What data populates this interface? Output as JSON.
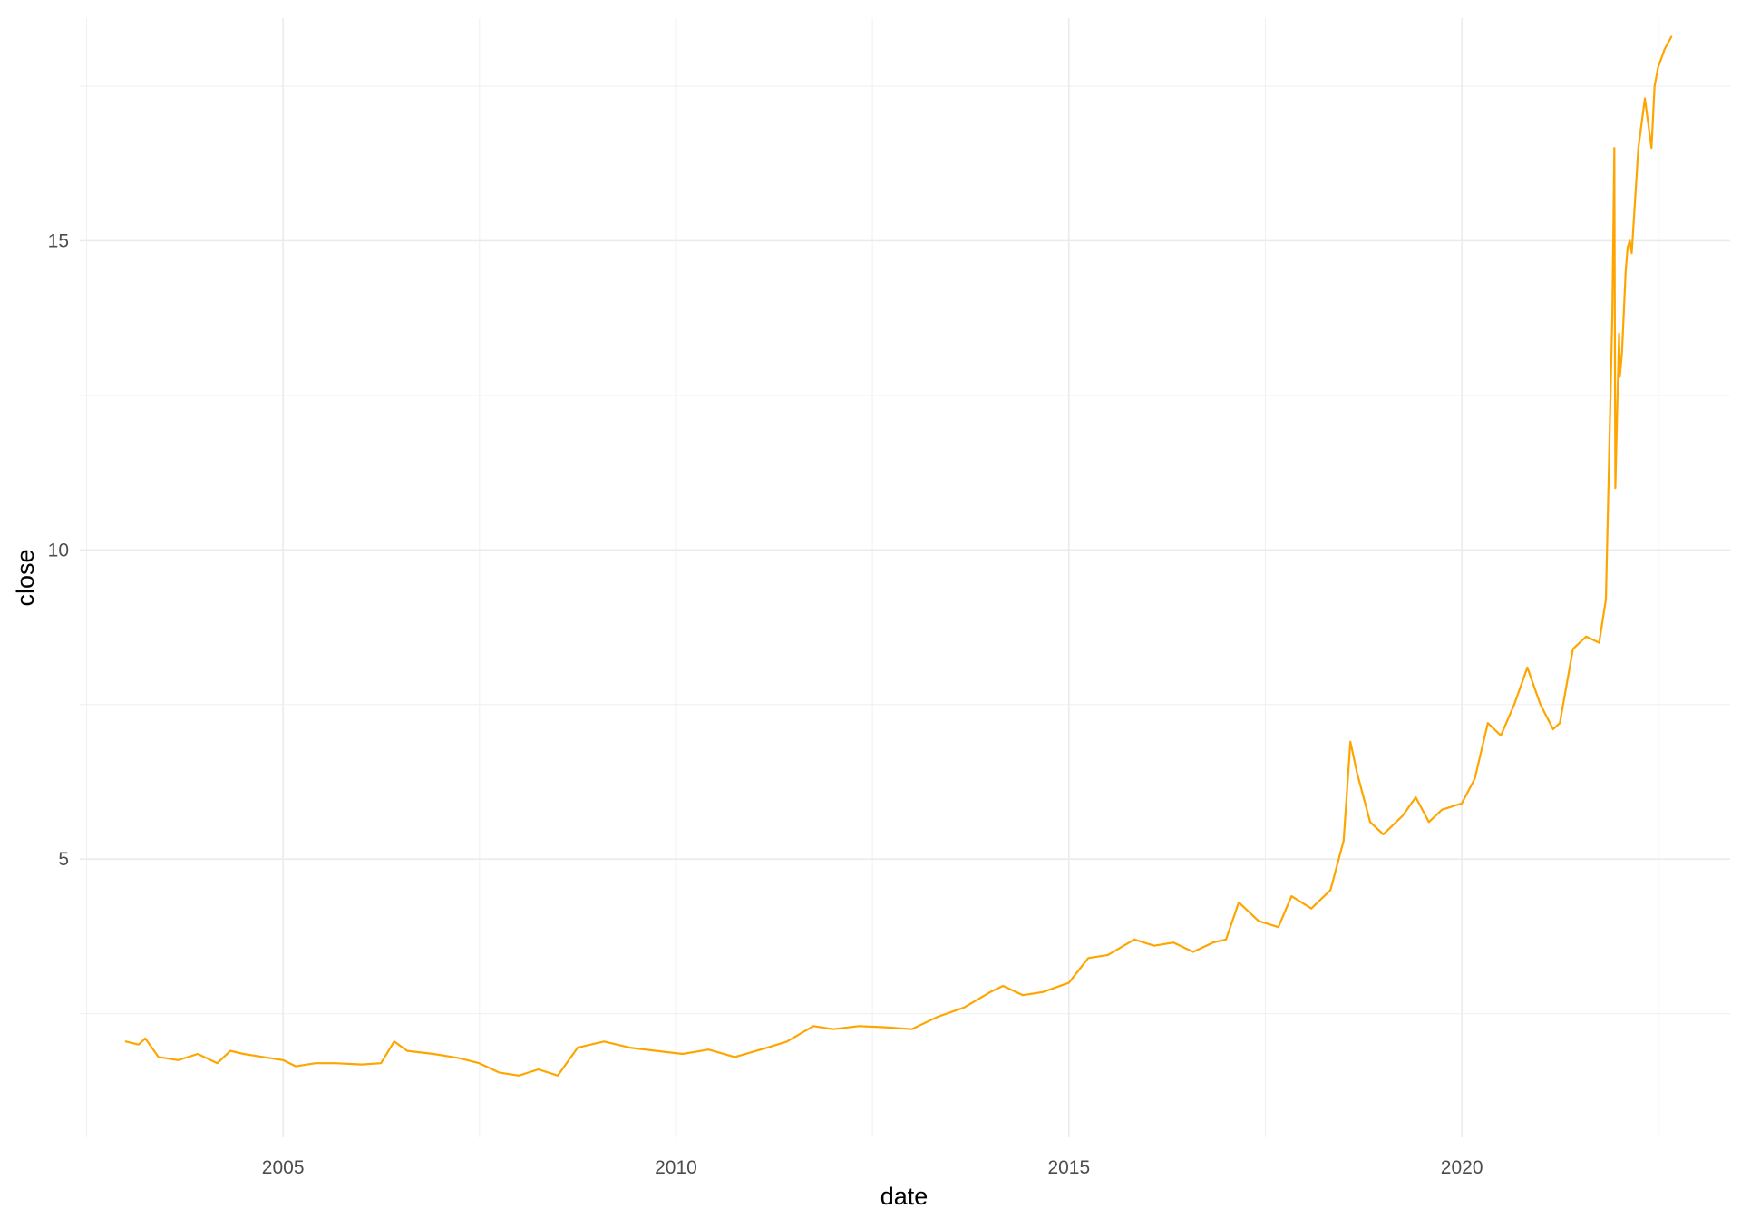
{
  "chart_data": {
    "type": "line",
    "title": "",
    "xlabel": "date",
    "ylabel": "close",
    "x_ticks": [
      "2005",
      "2010",
      "2015",
      "2020"
    ],
    "y_ticks": [
      "5",
      "10",
      "15"
    ],
    "xlim": [
      "2002-06-01",
      "2023-06-01"
    ],
    "ylim": [
      0.5,
      18.6
    ],
    "grid": true,
    "legend": "none",
    "line_color": "#FFA500",
    "series": [
      {
        "x": [
          "2003-01-01",
          "2003-03-01",
          "2003-04-01",
          "2003-06-01",
          "2003-09-01",
          "2003-12-01",
          "2004-03-01",
          "2004-05-01",
          "2004-07-01",
          "2004-10-01",
          "2005-01-01",
          "2005-03-01",
          "2005-06-01",
          "2005-09-01",
          "2006-01-01",
          "2006-04-01",
          "2006-06-01",
          "2006-08-01",
          "2006-12-01",
          "2007-04-01",
          "2007-07-01",
          "2007-10-01",
          "2008-01-01",
          "2008-04-01",
          "2008-07-01",
          "2008-10-01",
          "2008-12-01",
          "2009-02-01",
          "2009-06-01",
          "2009-10-01",
          "2010-02-01",
          "2010-06-01",
          "2010-10-01",
          "2011-03-01",
          "2011-06-01",
          "2011-10-01",
          "2012-01-01",
          "2012-05-01",
          "2012-09-01",
          "2013-01-01",
          "2013-05-01",
          "2013-09-01",
          "2014-01-01",
          "2014-03-01",
          "2014-06-01",
          "2014-09-01",
          "2015-01-01",
          "2015-04-01",
          "2015-07-01",
          "2015-11-01",
          "2016-02-01",
          "2016-05-01",
          "2016-08-01",
          "2016-11-01",
          "2017-01-01",
          "2017-03-01",
          "2017-06-01",
          "2017-09-01",
          "2017-11-01",
          "2018-02-01",
          "2018-05-01",
          "2018-07-01",
          "2018-08-01",
          "2018-09-01",
          "2018-11-01",
          "2019-01-01",
          "2019-04-01",
          "2019-06-01",
          "2019-08-01",
          "2019-10-01",
          "2020-01-01",
          "2020-03-01",
          "2020-05-01",
          "2020-07-01",
          "2020-09-01",
          "2020-11-01",
          "2021-01-01",
          "2021-03-01",
          "2021-04-01",
          "2021-06-01",
          "2021-08-01",
          "2021-10-01",
          "2021-11-01",
          "2021-12-01",
          "2021-12-10",
          "2021-12-15",
          "2022-01-01",
          "2022-01-05",
          "2022-01-15",
          "2022-02-01",
          "2022-02-10",
          "2022-02-20",
          "2022-03-01",
          "2022-04-01",
          "2022-05-01",
          "2022-06-01",
          "2022-06-15",
          "2022-07-01",
          "2022-08-01",
          "2022-09-01"
        ],
        "values": [
          2.05,
          2.0,
          2.1,
          1.8,
          1.75,
          1.85,
          1.7,
          1.9,
          1.85,
          1.8,
          1.75,
          1.65,
          1.7,
          1.7,
          1.68,
          1.7,
          2.05,
          1.9,
          1.85,
          1.78,
          1.7,
          1.55,
          1.5,
          1.6,
          1.5,
          1.95,
          2.0,
          2.05,
          1.95,
          1.9,
          1.85,
          1.92,
          1.8,
          1.95,
          2.05,
          2.3,
          2.25,
          2.3,
          2.28,
          2.25,
          2.45,
          2.6,
          2.85,
          2.95,
          2.8,
          2.85,
          3.0,
          3.4,
          3.45,
          3.7,
          3.6,
          3.65,
          3.5,
          3.65,
          3.7,
          4.3,
          4.0,
          3.9,
          4.4,
          4.2,
          4.5,
          5.3,
          6.9,
          6.4,
          5.6,
          5.4,
          5.7,
          6.0,
          5.6,
          5.8,
          5.9,
          6.3,
          7.2,
          7.0,
          7.5,
          8.1,
          7.5,
          7.1,
          7.2,
          8.4,
          8.6,
          8.5,
          9.2,
          13.8,
          16.5,
          11.0,
          13.5,
          12.8,
          13.2,
          14.5,
          14.9,
          15.0,
          14.8,
          16.5,
          17.3,
          16.5,
          17.5,
          17.8,
          18.1,
          18.3
        ]
      }
    ]
  }
}
